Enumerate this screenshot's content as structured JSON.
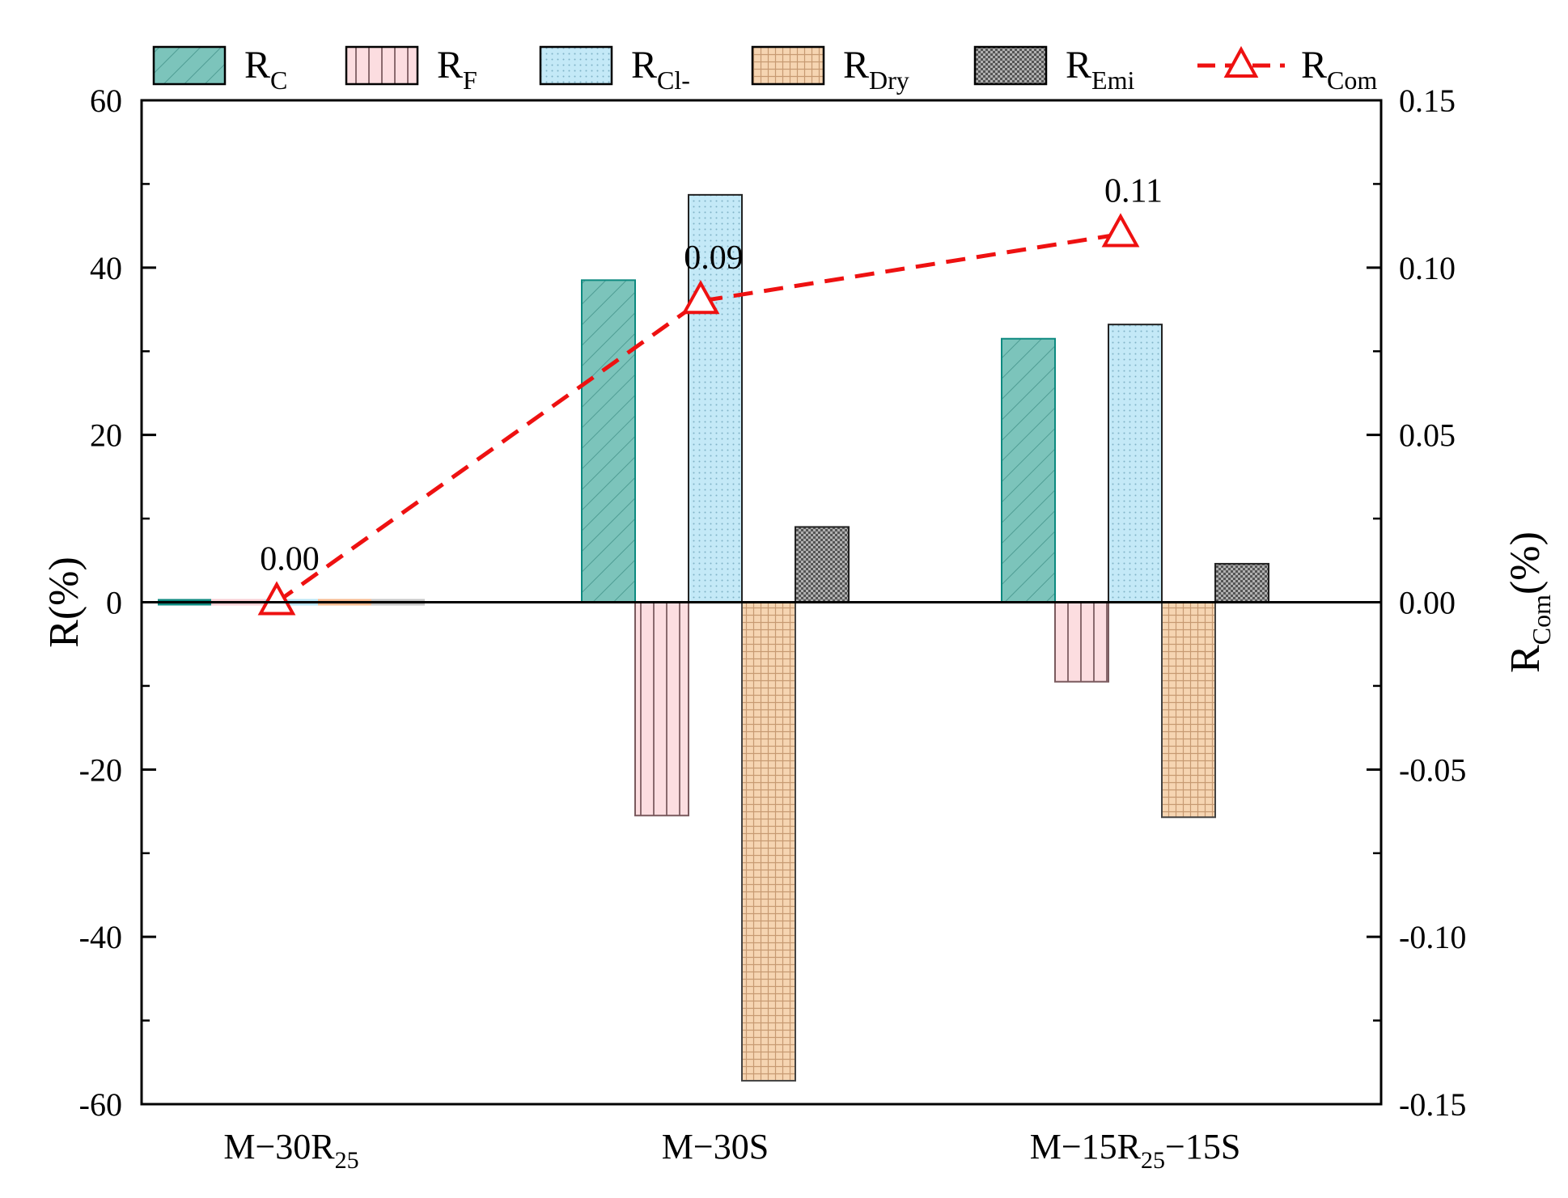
{
  "chart_data": {
    "type": "bar",
    "categories": [
      {
        "main": "M−30R",
        "sub": "25",
        "tail": ""
      },
      {
        "main": "M−30S",
        "sub": "",
        "tail": ""
      },
      {
        "main": "M−15R",
        "sub": "25",
        "tail": "−15S"
      }
    ],
    "series": [
      {
        "name": "R",
        "sub": "C",
        "values": [
          0,
          38.5,
          31.5
        ],
        "color": "#7cc4bb",
        "stroke": "#0e8a80",
        "pattern": "diagonal"
      },
      {
        "name": "R",
        "sub": "F",
        "values": [
          0,
          -25.5,
          -9.5
        ],
        "color": "#fcdde0",
        "stroke": "#7a5a5e",
        "pattern": "vertical"
      },
      {
        "name": "R",
        "sub": "Cl-",
        "values": [
          0,
          48.7,
          33.2
        ],
        "color": "#c4e9f7",
        "stroke": "#222222",
        "pattern": "dots"
      },
      {
        "name": "R",
        "sub": "Dry",
        "values": [
          0,
          -57.2,
          -25.7
        ],
        "color": "#f6d5b2",
        "stroke": "#444444",
        "pattern": "grid"
      },
      {
        "name": "R",
        "sub": "Emi",
        "values": [
          0,
          9.0,
          4.6
        ],
        "color": "#9a9a9a",
        "stroke": "#222222",
        "pattern": "checker"
      }
    ],
    "line_series": {
      "name": "R",
      "sub": "Com",
      "values": [
        0.0,
        0.09,
        0.11
      ],
      "labels": [
        "0.00",
        "0.09",
        "0.11"
      ],
      "color": "#ee1111"
    },
    "zero_colors": [
      "#0e8a80",
      "#f9cfd4",
      "#b9e5f5",
      "#f6b98e",
      "#c6c6c6"
    ],
    "y_left": {
      "label_main": "R(%)",
      "ylim": [
        -60,
        60
      ],
      "ticks": [
        -60,
        -40,
        -20,
        0,
        20,
        40,
        60
      ],
      "tick_labels": [
        "-60",
        "-40",
        "-20",
        "0",
        "20",
        "40",
        "60"
      ]
    },
    "y_right": {
      "label_main": "R",
      "label_sub": "Com",
      "label_tail": "(%)",
      "ylim": [
        -0.15,
        0.15
      ],
      "ticks": [
        -0.15,
        -0.1,
        -0.05,
        0,
        0.05,
        0.1,
        0.15
      ],
      "tick_labels": [
        "-0.15",
        "-0.10",
        "-0.05",
        "0.00",
        "0.05",
        "0.10",
        "0.15"
      ]
    },
    "legend_position": "top",
    "grid": false
  }
}
